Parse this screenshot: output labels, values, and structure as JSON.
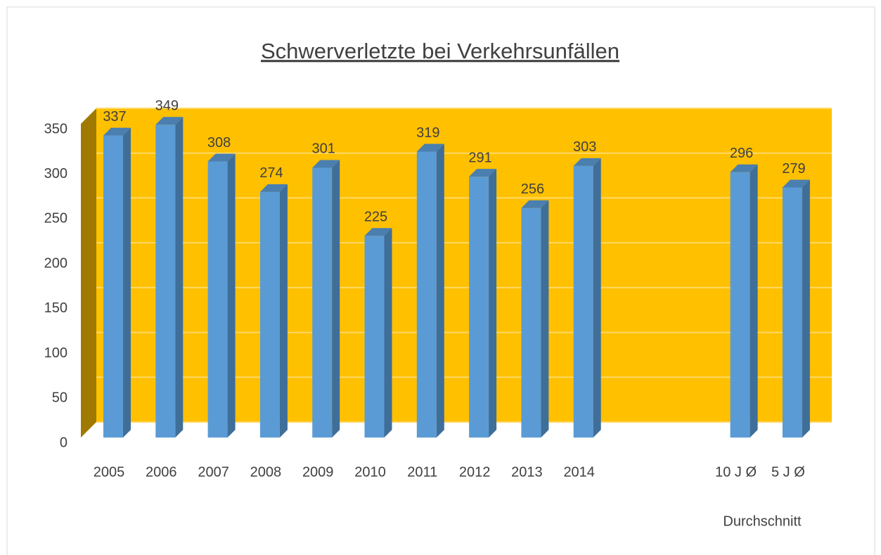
{
  "chart_data": {
    "type": "bar3d",
    "title": "Schwerverletzte bei Verkehrsunfällen",
    "categories": [
      "2005",
      "2006",
      "2007",
      "2008",
      "2009",
      "2010",
      "2011",
      "2012",
      "2013",
      "2014",
      null,
      null,
      "10 J Ø",
      "5 J Ø"
    ],
    "values": [
      337,
      349,
      308,
      274,
      301,
      225,
      319,
      291,
      256,
      303,
      null,
      null,
      296,
      279
    ],
    "color": "#5B9BD5",
    "wall_color": "#FFC000",
    "x_label": "Durchschnitt",
    "ylim": [
      0,
      350
    ],
    "yticks": [
      0,
      50,
      100,
      150,
      200,
      250,
      300,
      350
    ],
    "grid": true
  }
}
